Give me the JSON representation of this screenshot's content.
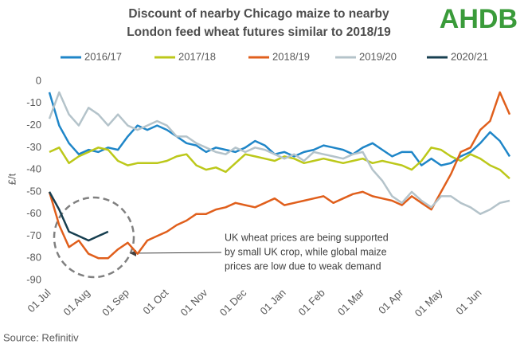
{
  "chart_data": {
    "type": "line",
    "title": [
      "Discount of nearby Chicago maize to nearby",
      "London feed wheat futures similar to 2018/19"
    ],
    "logo": "AHDB",
    "ylabel": "£/t",
    "source": "Source: Refinitiv",
    "annotation": [
      "UK wheat prices are being supported",
      "by small UK crop, while global maize",
      "prices are low due to weak demand"
    ],
    "categories": [
      "01 Jul",
      null,
      null,
      null,
      "01 Aug",
      null,
      null,
      null,
      "01 Sep",
      null,
      null,
      null,
      "01 Oct",
      null,
      null,
      null,
      "01 Nov",
      null,
      null,
      null,
      "01 Dec",
      null,
      null,
      null,
      "01 Jan",
      null,
      null,
      null,
      "01 Feb",
      null,
      null,
      null,
      "01 Mar",
      null,
      null,
      null,
      "01 Apr",
      null,
      null,
      null,
      "01 May",
      null,
      null,
      null,
      "01 Jun",
      null,
      null,
      null
    ],
    "ylim": [
      -90,
      0
    ],
    "yticks": [
      0,
      -10,
      -20,
      -30,
      -40,
      -50,
      -60,
      -70,
      -80,
      -90
    ],
    "grid": false,
    "legend": "top",
    "series": [
      {
        "name": "2016/17",
        "color": "#1f86c8",
        "values": [
          -5,
          -20,
          -28,
          -33,
          -31,
          -32,
          -30,
          -31,
          -25,
          -20,
          -22,
          -20,
          -22,
          -25,
          -28,
          -29,
          -32,
          -30,
          -31,
          -32,
          -30,
          -27,
          -29,
          -33,
          -32,
          -34,
          -32,
          -31,
          -29,
          -30,
          -31,
          -33,
          -30,
          -28,
          -31,
          -34,
          -32,
          -32,
          -38,
          -35,
          -38,
          -37,
          -34,
          -32,
          -28,
          -23,
          -27,
          -34
        ]
      },
      {
        "name": "2017/18",
        "color": "#bcc81a",
        "values": [
          -32,
          -30,
          -37,
          -34,
          -32,
          -30,
          -31,
          -36,
          -38,
          -37,
          -37,
          -37,
          -36,
          -34,
          -33,
          -38,
          -40,
          -39,
          -41,
          -37,
          -33,
          -34,
          -35,
          -36,
          -34,
          -35,
          -37,
          -36,
          -35,
          -36,
          -37,
          -36,
          -35,
          -37,
          -36,
          -37,
          -38,
          -40,
          -36,
          -30,
          -31,
          -34,
          -36,
          -33,
          -35,
          -38,
          -40,
          -44
        ]
      },
      {
        "name": "2018/19",
        "color": "#e05f1c",
        "values": [
          -50,
          -65,
          -75,
          -72,
          -78,
          -80,
          -80,
          -76,
          -73,
          -78,
          -72,
          -70,
          -68,
          -65,
          -63,
          -60,
          -60,
          -58,
          -57,
          -55,
          -56,
          -57,
          -55,
          -53,
          -56,
          -55,
          -54,
          -53,
          -52,
          -55,
          -53,
          -51,
          -50,
          -52,
          -53,
          -54,
          -56,
          -52,
          -55,
          -58,
          -50,
          -42,
          -32,
          -30,
          -22,
          -18,
          -5,
          -15
        ]
      },
      {
        "name": "2019/20",
        "color": "#b4c3ca",
        "values": [
          -17,
          -5,
          -15,
          -20,
          -12,
          -15,
          -20,
          -15,
          -20,
          -22,
          -20,
          -18,
          -20,
          -25,
          -25,
          -28,
          -30,
          -32,
          -33,
          -30,
          -32,
          -30,
          -31,
          -33,
          -35,
          -33,
          -36,
          -32,
          -33,
          -34,
          -35,
          -33,
          -32,
          -40,
          -45,
          -52,
          -55,
          -50,
          -54,
          -57,
          -52,
          -52,
          -55,
          -57,
          -60,
          -58,
          -55,
          -54
        ]
      },
      {
        "name": "2020/21",
        "color": "#173f50",
        "values": [
          -50,
          -58,
          -68,
          -70,
          -72,
          -70,
          -68,
          null,
          null,
          null,
          null,
          null,
          null,
          null,
          null,
          null,
          null,
          null,
          null,
          null,
          null,
          null,
          null,
          null,
          null,
          null,
          null,
          null,
          null,
          null,
          null,
          null,
          null,
          null,
          null,
          null,
          null,
          null,
          null,
          null,
          null,
          null,
          null,
          null,
          null,
          null,
          null,
          null
        ]
      }
    ]
  }
}
